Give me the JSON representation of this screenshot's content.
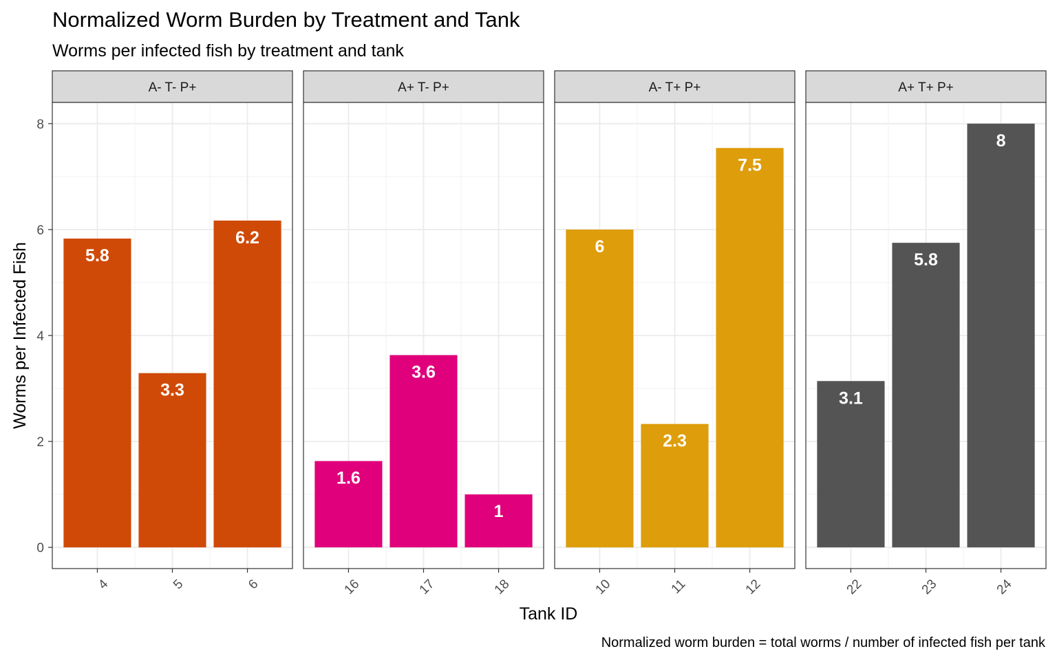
{
  "chart_data": {
    "type": "bar",
    "title": "Normalized Worm Burden by Treatment and Tank",
    "subtitle": "Worms per infected fish by treatment and tank",
    "caption": "Normalized worm burden = total worms / number of infected fish per tank",
    "xlabel": "Tank ID",
    "ylabel": "Worms per Infected Fish",
    "ylim": [
      -0.4,
      8.4
    ],
    "yticks": [
      0,
      2,
      4,
      6,
      8
    ],
    "grid": true,
    "facets": [
      {
        "name": "A- T- P+",
        "color": "#D04A07",
        "categories": [
          "4",
          "5",
          "6"
        ],
        "values": [
          5.83,
          3.29,
          6.17
        ],
        "labels": [
          "5.8",
          "3.3",
          "6.2"
        ]
      },
      {
        "name": "A+ T- P+",
        "color": "#E0007B",
        "categories": [
          "16",
          "17",
          "18"
        ],
        "values": [
          1.63,
          3.63,
          1.0
        ],
        "labels": [
          "1.6",
          "3.6",
          "1"
        ]
      },
      {
        "name": "A- T+ P+",
        "color": "#DE9D0A",
        "categories": [
          "10",
          "11",
          "12"
        ],
        "values": [
          6.0,
          2.33,
          7.54
        ],
        "labels": [
          "6",
          "2.3",
          "7.5"
        ]
      },
      {
        "name": "A+ T+ P+",
        "color": "#545454",
        "categories": [
          "22",
          "23",
          "24"
        ],
        "values": [
          3.14,
          5.75,
          8.0
        ],
        "labels": [
          "3.1",
          "5.8",
          "8"
        ]
      }
    ]
  }
}
